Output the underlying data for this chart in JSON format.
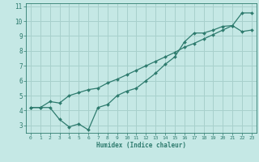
{
  "xlabel": "Humidex (Indice chaleur)",
  "bg_color": "#c5e8e5",
  "grid_color": "#a8d0cc",
  "line_color": "#2e7b6e",
  "xlim": [
    -0.5,
    23.5
  ],
  "ylim": [
    2.5,
    11.2
  ],
  "xticks": [
    0,
    1,
    2,
    3,
    4,
    5,
    6,
    7,
    8,
    9,
    10,
    11,
    12,
    13,
    14,
    15,
    16,
    17,
    18,
    19,
    20,
    21,
    22,
    23
  ],
  "yticks": [
    3,
    4,
    5,
    6,
    7,
    8,
    9,
    10,
    11
  ],
  "line1_x": [
    0,
    1,
    2,
    3,
    4,
    5,
    6,
    7,
    8,
    9,
    10,
    11,
    12,
    13,
    14,
    15,
    16,
    17,
    18,
    19,
    20,
    21,
    22,
    23
  ],
  "line1_y": [
    4.2,
    4.2,
    4.2,
    3.4,
    2.9,
    3.1,
    2.7,
    4.2,
    4.4,
    5.0,
    5.3,
    5.5,
    6.0,
    6.5,
    7.1,
    7.6,
    8.6,
    9.2,
    9.2,
    9.4,
    9.65,
    9.7,
    10.55,
    10.55
  ],
  "line2_x": [
    0,
    1,
    2,
    3,
    4,
    5,
    6,
    7,
    8,
    9,
    10,
    11,
    12,
    13,
    14,
    15,
    16,
    17,
    18,
    19,
    20,
    21,
    22,
    23
  ],
  "line2_y": [
    4.2,
    4.2,
    4.6,
    4.5,
    5.0,
    5.2,
    5.4,
    5.5,
    5.85,
    6.1,
    6.4,
    6.7,
    7.0,
    7.3,
    7.6,
    7.9,
    8.25,
    8.5,
    8.8,
    9.1,
    9.4,
    9.7,
    9.3,
    9.4
  ]
}
